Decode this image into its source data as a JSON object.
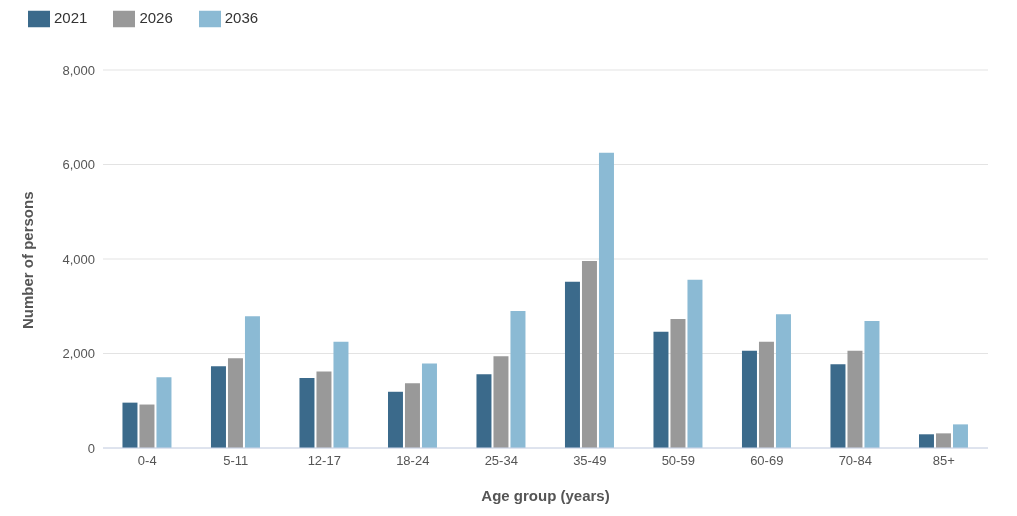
{
  "chart_data": {
    "type": "bar",
    "xlabel": "Age group (years)",
    "ylabel": "Number of persons",
    "categories": [
      "0-4",
      "5-11",
      "12-17",
      "18-24",
      "25-34",
      "35-49",
      "50-59",
      "60-69",
      "70-84",
      "85+"
    ],
    "series": [
      {
        "name": "2021",
        "color": "#3b6a8b",
        "values": [
          960,
          1730,
          1480,
          1190,
          1560,
          3520,
          2460,
          2060,
          1770,
          290
        ]
      },
      {
        "name": "2026",
        "color": "#999999",
        "values": [
          920,
          1900,
          1620,
          1370,
          1940,
          3960,
          2730,
          2250,
          2060,
          310
        ]
      },
      {
        "name": "2036",
        "color": "#8bbad4",
        "values": [
          1500,
          2790,
          2250,
          1790,
          2900,
          6250,
          3560,
          2830,
          2690,
          500
        ]
      }
    ],
    "ylim": [
      0,
      8000
    ],
    "yticks": [
      {
        "value": 0,
        "label": "0"
      },
      {
        "value": 2000,
        "label": "2,000"
      },
      {
        "value": 4000,
        "label": "4,000"
      },
      {
        "value": 6000,
        "label": "6,000"
      },
      {
        "value": 8000,
        "label": "8,000"
      }
    ],
    "grid": "y",
    "legend": "top left"
  }
}
